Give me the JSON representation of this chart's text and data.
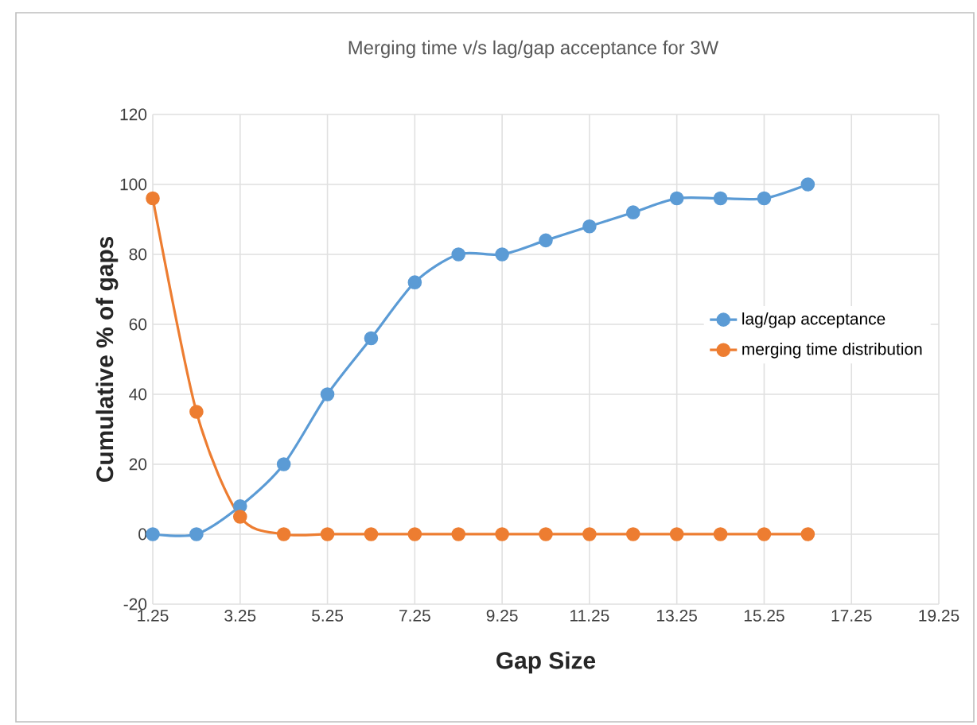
{
  "chart_data": {
    "type": "line",
    "title": "Merging time v/s lag/gap acceptance for 3W",
    "xlabel": "Gap Size",
    "ylabel": "Cumulative %  of gaps",
    "x": [
      1.25,
      2.25,
      3.25,
      4.25,
      5.25,
      6.25,
      7.25,
      8.25,
      9.25,
      10.25,
      11.25,
      12.25,
      13.25,
      14.25,
      15.25,
      16.25
    ],
    "series": [
      {
        "name": "lag/gap acceptance",
        "color": "#5b9bd5",
        "values": [
          0,
          0,
          8,
          20,
          40,
          56,
          72,
          80,
          80,
          84,
          88,
          92,
          96,
          96,
          96,
          100
        ]
      },
      {
        "name": "merging time distribution",
        "color": "#ed7d31",
        "values": [
          96,
          35,
          5,
          0,
          0,
          0,
          0,
          0,
          0,
          0,
          0,
          0,
          0,
          0,
          0,
          0
        ]
      }
    ],
    "xlim": [
      1.25,
      19.25
    ],
    "xticks": [
      1.25,
      3.25,
      5.25,
      7.25,
      9.25,
      11.25,
      13.25,
      15.25,
      17.25,
      19.25
    ],
    "ylim": [
      -20,
      120
    ],
    "yticks": [
      -20,
      0,
      20,
      40,
      60,
      80,
      100,
      120
    ],
    "grid": true,
    "legend": "right",
    "marker": "circle",
    "line_style": "solid"
  }
}
